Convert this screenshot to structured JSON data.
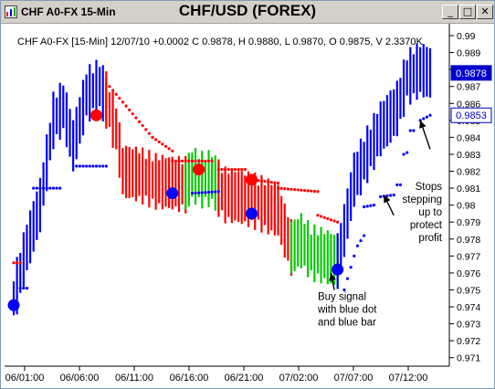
{
  "window": {
    "title_left": "CHF A0-FX 15-Min",
    "title_main": "CHF/USD (FOREX)",
    "buttons": {
      "minimize": "_",
      "maximize": "□",
      "close": "✕"
    }
  },
  "chart_data": {
    "type": "bar",
    "info_line": "CHF A0-FX [15-Min] 12/07/10 +0.0002 C 0.9878, H 0.9880, L 0.9870, O 0.9875, V 2.3370K",
    "ylim": [
      0.9705,
      0.9907
    ],
    "y_ticks": [
      0.971,
      0.972,
      0.973,
      0.974,
      0.975,
      0.976,
      0.977,
      0.978,
      0.979,
      0.98,
      0.981,
      0.982,
      0.983,
      0.984,
      0.985,
      0.986,
      0.987,
      0.988,
      0.989,
      0.99
    ],
    "y_tick_labels": [
      "0.971",
      "0.972",
      "0.973",
      "0.974",
      "0.975",
      "0.976",
      "0.977",
      "0.978",
      "0.979",
      "0.98",
      "0.981",
      "0.982",
      "0.983",
      "0.984",
      "0.985",
      "0.986",
      "0.987",
      "0.988",
      "0.989",
      "0.99"
    ],
    "x_labels": [
      "06/01:00",
      "06/06:00",
      "06/11:00",
      "06/16:00",
      "06/21:00",
      "07/02:00",
      "07/07:00",
      "07/12:00"
    ],
    "price_labels": [
      {
        "text": "0.9878",
        "value": 0.9878,
        "style": "filled"
      },
      {
        "text": "0.9853",
        "value": 0.9853,
        "style": "outline"
      }
    ],
    "colors": {
      "up": "#0000ff",
      "down": "#ff0000",
      "neutral": "#00cc00",
      "axis": "#000000",
      "grid": "#000000"
    },
    "segments": [
      {
        "color": "#0000ff",
        "path": [
          [
            0,
            0.9745
          ],
          [
            4,
            0.9775
          ],
          [
            8,
            0.98
          ],
          [
            12,
            0.985
          ],
          [
            15,
            0.9858
          ],
          [
            18,
            0.9835
          ],
          [
            22,
            0.9865
          ],
          [
            26,
            0.987
          ],
          [
            28,
            0.9862
          ]
        ]
      },
      {
        "color": "#ff0000",
        "path": [
          [
            28,
            0.9862
          ],
          [
            31,
            0.9845
          ],
          [
            33,
            0.982
          ],
          [
            38,
            0.9818
          ],
          [
            43,
            0.9814
          ],
          [
            48,
            0.9813
          ],
          [
            52,
            0.9812
          ]
        ]
      },
      {
        "color": "#00cc00",
        "path": [
          [
            52,
            0.9812
          ],
          [
            54,
            0.9818
          ],
          [
            57,
            0.9815
          ],
          [
            60,
            0.9816
          ],
          [
            62,
            0.981
          ]
        ]
      },
      {
        "color": "#ff0000",
        "path": [
          [
            62,
            0.981
          ],
          [
            64,
            0.9806
          ],
          [
            68,
            0.9805
          ],
          [
            72,
            0.9803
          ],
          [
            76,
            0.98
          ],
          [
            80,
            0.9797
          ],
          [
            82,
            0.9785
          ],
          [
            84,
            0.9775
          ]
        ]
      },
      {
        "color": "#00cc00",
        "path": [
          [
            84,
            0.9775
          ],
          [
            87,
            0.9779
          ],
          [
            90,
            0.9772
          ],
          [
            94,
            0.977
          ],
          [
            98,
            0.9767
          ]
        ]
      },
      {
        "color": "#0000ff",
        "path": [
          [
            98,
            0.9767
          ],
          [
            100,
            0.9785
          ],
          [
            103,
            0.9815
          ],
          [
            107,
            0.983
          ],
          [
            111,
            0.9845
          ],
          [
            116,
            0.9857
          ],
          [
            119,
            0.9875
          ],
          [
            123,
            0.988
          ],
          [
            126,
            0.9878
          ]
        ]
      }
    ],
    "stop_dots": [
      {
        "color": "#ff0000",
        "from": [
          0,
          0.9766
        ],
        "to": [
          2,
          0.9766
        ]
      },
      {
        "color": "#0000ff",
        "from": [
          2,
          0.9751
        ],
        "to": [
          4,
          0.9751
        ]
      },
      {
        "color": "#0000ff",
        "from": [
          6,
          0.981
        ],
        "to": [
          14,
          0.981
        ]
      },
      {
        "color": "#0000ff",
        "from": [
          19,
          0.9823
        ],
        "to": [
          28,
          0.9823
        ]
      },
      {
        "color": "#ff0000",
        "from": [
          29,
          0.987
        ],
        "to": [
          42,
          0.984
        ]
      },
      {
        "color": "#ff0000",
        "from": [
          42,
          0.984
        ],
        "to": [
          48,
          0.9832
        ]
      },
      {
        "color": "#ff0000",
        "from": [
          48,
          0.9826
        ],
        "to": [
          60,
          0.9826
        ]
      },
      {
        "color": "#0000ff",
        "from": [
          54,
          0.9807
        ],
        "to": [
          62,
          0.9808
        ]
      },
      {
        "color": "#ff0000",
        "from": [
          62,
          0.9821
        ],
        "to": [
          70,
          0.9821
        ]
      },
      {
        "color": "#ff0000",
        "from": [
          72,
          0.9815
        ],
        "to": [
          80,
          0.9813
        ]
      },
      {
        "color": "#ff0000",
        "from": [
          80,
          0.981
        ],
        "to": [
          92,
          0.9808
        ]
      },
      {
        "color": "#ff0000",
        "from": [
          92,
          0.9794
        ],
        "to": [
          98,
          0.979
        ]
      },
      {
        "color": "#0000ff",
        "from": [
          100,
          0.975
        ],
        "to": [
          103,
          0.977
        ]
      },
      {
        "color": "#0000ff",
        "from": [
          104,
          0.9776
        ],
        "to": [
          106,
          0.9782
        ]
      },
      {
        "color": "#0000ff",
        "from": [
          106,
          0.9799
        ],
        "to": [
          109,
          0.98
        ]
      },
      {
        "color": "#0000ff",
        "from": [
          111,
          0.9805
        ],
        "to": [
          115,
          0.9806
        ]
      },
      {
        "color": "#0000ff",
        "from": [
          116,
          0.9812
        ],
        "to": [
          117,
          0.9812
        ]
      },
      {
        "color": "#0000ff",
        "from": [
          118,
          0.983
        ],
        "to": [
          119,
          0.9831
        ]
      },
      {
        "color": "#0000ff",
        "from": [
          120,
          0.9844
        ],
        "to": [
          121,
          0.9844
        ]
      },
      {
        "color": "#0000ff",
        "from": [
          123,
          0.985
        ],
        "to": [
          126,
          0.9853
        ]
      }
    ],
    "signal_dots": [
      {
        "color": "#0000ff",
        "x": 0,
        "y": 0.9741
      },
      {
        "color": "#ff0000",
        "x": 25,
        "y": 0.9853
      },
      {
        "color": "#0000ff",
        "x": 48,
        "y": 0.9807
      },
      {
        "color": "#ff0000",
        "x": 56,
        "y": 0.9821
      },
      {
        "color": "#0000ff",
        "x": 72,
        "y": 0.9795
      },
      {
        "color": "#ff0000",
        "x": 72,
        "y": 0.9815
      },
      {
        "color": "#0000ff",
        "x": 98,
        "y": 0.9762
      }
    ],
    "annotations": [
      {
        "text": "Buy signal\nwith blue dot\nand blue bar",
        "label_value": 0.9744,
        "label_x": 92,
        "arrow_from": [
          97,
          0.975
        ],
        "arrow_to": [
          96,
          0.976
        ]
      },
      {
        "text": "Stops\nstepping\nup to\nprotect\nprofit",
        "label_value": 0.9809,
        "label_x": 119,
        "arrow_from": [
          115,
          0.9794
        ],
        "arrow_to": [
          112,
          0.9806
        ],
        "arrow2_from": [
          126,
          0.9833
        ],
        "arrow2_to": [
          123,
          0.985
        ]
      }
    ]
  }
}
